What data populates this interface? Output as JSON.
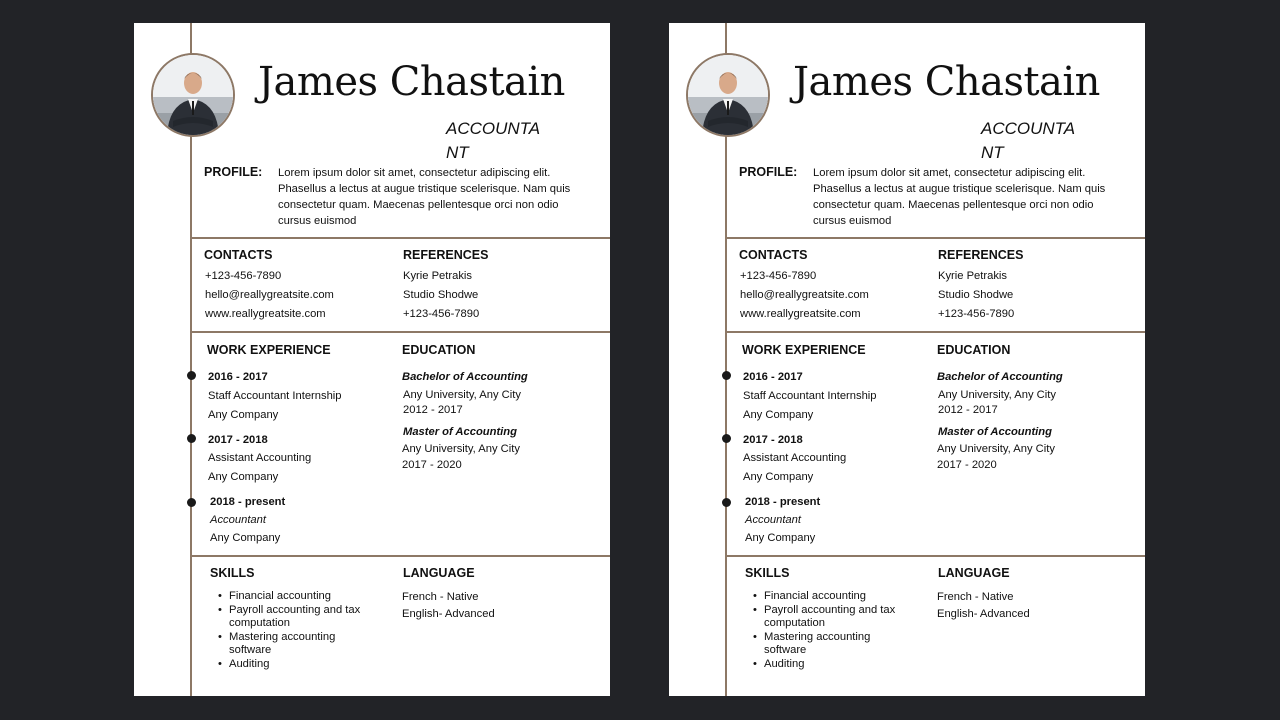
{
  "resume": {
    "name": "James Chastain",
    "role": "ACCOUNTANT",
    "profile": {
      "label": "PROFILE:",
      "text": "Lorem ipsum dolor sit amet, consectetur adipiscing elit. Phasellus a lectus at augue tristique scelerisque. Nam quis consectetur quam. Maecenas pellentesque orci non odio cursus euismod"
    },
    "contacts": {
      "title": "CONTACTS",
      "items": [
        "+123-456-7890",
        "hello@reallygreatsite.com",
        "www.reallygreatsite.com"
      ]
    },
    "references": {
      "title": "REFERENCES",
      "items": [
        "Kyrie Petrakis",
        "Studio Shodwe",
        "+123-456-7890"
      ]
    },
    "work": {
      "title": "WORK EXPERIENCE",
      "items": [
        {
          "period": "2016 - 2017",
          "position": "Staff Accountant Internship",
          "company": "Any Company"
        },
        {
          "period": "2017 - 2018",
          "position": "Assistant Accounting",
          "company": "Any Company"
        },
        {
          "period": "2018 - present",
          "position": "Accountant",
          "company": "Any Company"
        }
      ]
    },
    "education": {
      "title": "EDUCATION",
      "items": [
        {
          "degree": "Bachelor of Accounting",
          "school": "Any University, Any City",
          "years": "2012 - 2017"
        },
        {
          "degree": "Master of Accounting",
          "school": "Any University, Any City",
          "years": "2017 - 2020"
        }
      ]
    },
    "skills": {
      "title": "SKILLS",
      "items": [
        "Financial accounting",
        "Payroll accounting and tax computation",
        "Mastering accounting software",
        "Auditing"
      ]
    },
    "language": {
      "title": "LANGUAGE",
      "items": [
        "French - Native",
        "English- Advanced"
      ]
    }
  },
  "colors": {
    "background": "#222327",
    "accent_line": "#8d7866",
    "paper": "#ffffff"
  }
}
